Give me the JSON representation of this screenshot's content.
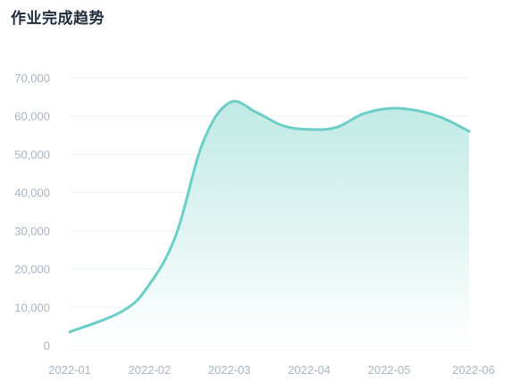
{
  "title": "作业完成趋势",
  "colors": {
    "line": "#6ccfc7",
    "area_top": "#bde9e4",
    "area_bottom": "#ffffff",
    "grid": "#eef2f6",
    "tick_text": "#a8b5c5",
    "title": "#1f2d3d"
  },
  "chart_data": {
    "type": "area",
    "title": "作业完成趋势",
    "xlabel": "",
    "ylabel": "",
    "categories": [
      "2022-01",
      "2022-02",
      "2022-03",
      "2022-04",
      "2022-05",
      "2022-06"
    ],
    "ylim": [
      0,
      70000
    ],
    "yticks": [
      0,
      10000,
      20000,
      30000,
      40000,
      50000,
      60000,
      70000
    ],
    "ytick_labels": [
      "0",
      "10,000",
      "20,000",
      "30,000",
      "40,000",
      "50,000",
      "60,000",
      "70,000"
    ],
    "grid": true,
    "legend": "none",
    "smooth": true,
    "series": [
      {
        "x": [
          "2022-01",
          "2022-01-20",
          "2022-02",
          "2022-02-10",
          "2022-02-20",
          "2022-03",
          "2022-03-10",
          "2022-03-20",
          "2022-04",
          "2022-04-10",
          "2022-04-20",
          "2022-05",
          "2022-05-10",
          "2022-05-20",
          "2022-06"
        ],
        "values": [
          3500,
          9000,
          16000,
          29000,
          53000,
          63500,
          61000,
          57500,
          56500,
          57000,
          60500,
          62000,
          61500,
          59500,
          56000
        ]
      }
    ]
  }
}
